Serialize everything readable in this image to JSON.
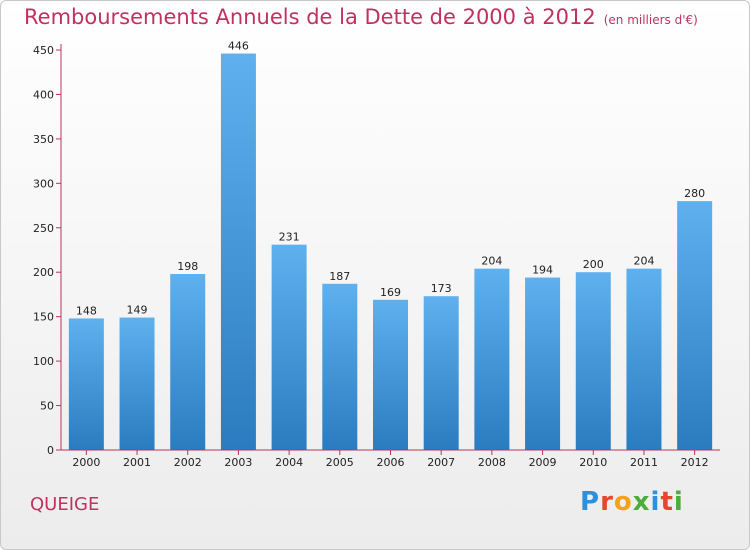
{
  "chart_data": {
    "type": "bar",
    "title": "Remboursements Annuels de la Dette de 2000 à 2012",
    "subtitle": "(en milliers d'€)",
    "categories": [
      "2000",
      "2001",
      "2002",
      "2003",
      "2004",
      "2005",
      "2006",
      "2007",
      "2008",
      "2009",
      "2010",
      "2011",
      "2012"
    ],
    "values": [
      148,
      149,
      198,
      446,
      231,
      187,
      169,
      173,
      204,
      194,
      200,
      204,
      280
    ],
    "ylim": [
      0,
      450
    ],
    "yticks": [
      0,
      50,
      100,
      150,
      200,
      250,
      300,
      350,
      400,
      450
    ],
    "grid": false,
    "bar_color": "#4a9fdf",
    "axis_color": "#c0315f"
  },
  "place_name": "QUEIGE",
  "logo": {
    "letters": [
      "P",
      "r",
      "o",
      "x",
      "i",
      "t",
      "i"
    ],
    "colors": [
      "#2f8fd8",
      "#e8452c",
      "#f2a31b",
      "#4cae3a",
      "#2f8fd8",
      "#e8452c",
      "#4cae3a"
    ]
  }
}
